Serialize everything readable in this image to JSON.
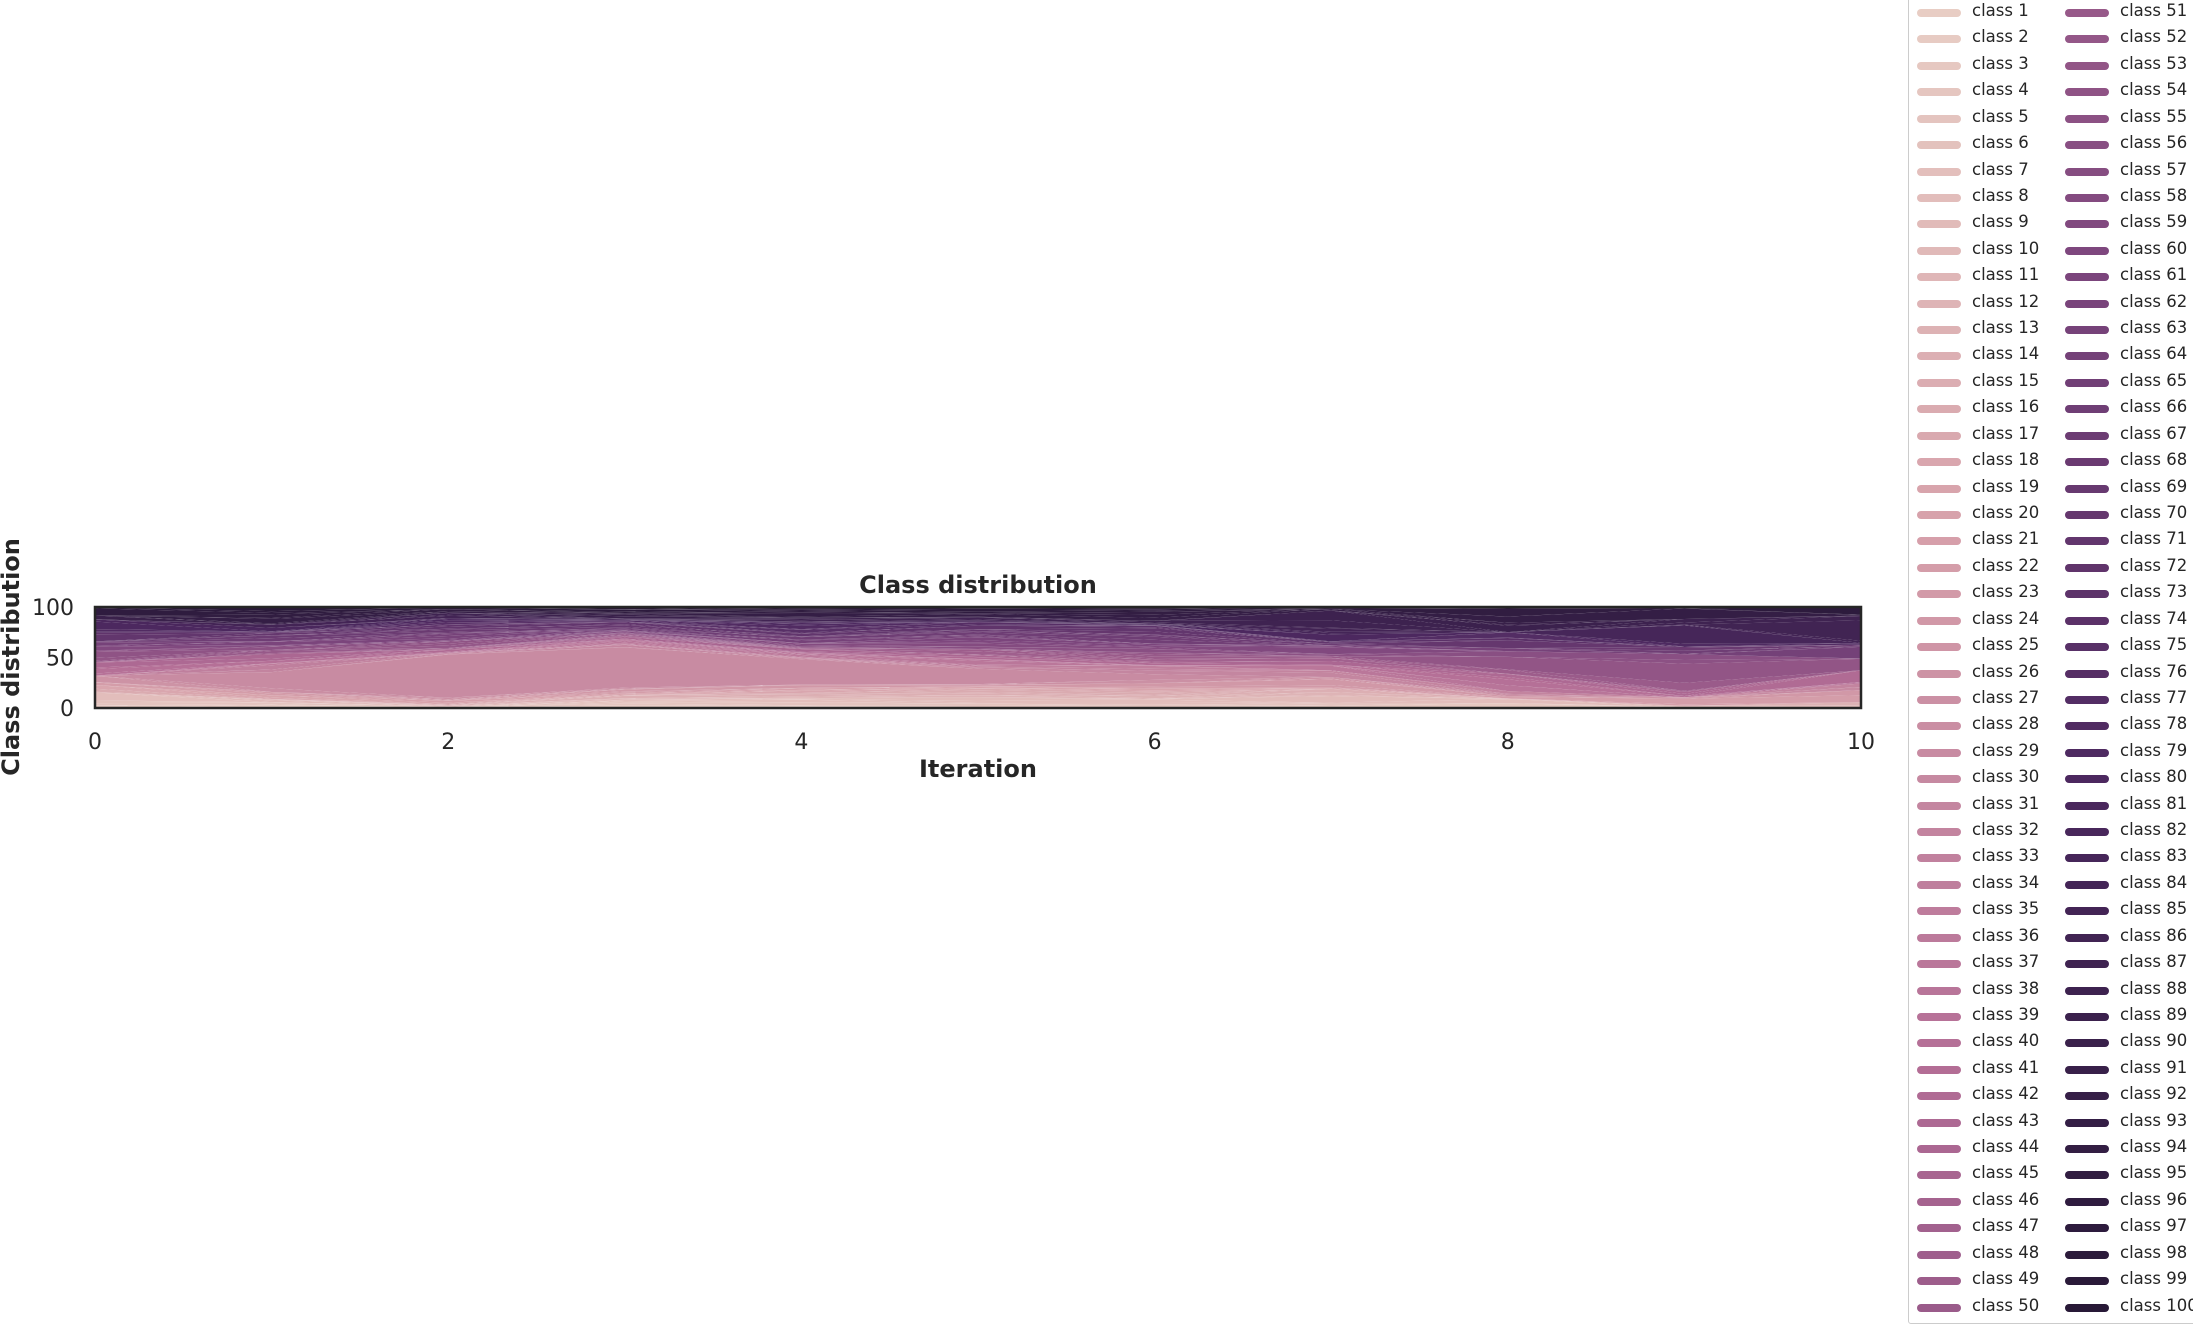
{
  "chart_data": {
    "type": "area",
    "title": "Class distribution",
    "xlabel": "Iteration",
    "ylabel": "Class distribution",
    "xlim": [
      0,
      10
    ],
    "ylim": [
      0,
      100
    ],
    "xticks": [
      "0",
      "2",
      "4",
      "6",
      "8",
      "10"
    ],
    "yticks": [
      "0",
      "50",
      "100"
    ],
    "grid": false,
    "legend_position": "outside-right",
    "legend_columns": 2,
    "palette": "cubehelix pink-to-dark-purple",
    "x": [
      0,
      1,
      2,
      3,
      4,
      5,
      6,
      7,
      8,
      9,
      10
    ],
    "highlighted_series": {
      "name": "class 29",
      "values": [
        0,
        5,
        25,
        25,
        12,
        6,
        2,
        0,
        0,
        0,
        0
      ]
    },
    "series_names": [
      "class 1",
      "class 2",
      "class 3",
      "class 4",
      "class 5",
      "class 6",
      "class 7",
      "class 8",
      "class 9",
      "class 10",
      "class 11",
      "class 12",
      "class 13",
      "class 14",
      "class 15",
      "class 16",
      "class 17",
      "class 18",
      "class 19",
      "class 20",
      "class 21",
      "class 22",
      "class 23",
      "class 24",
      "class 25",
      "class 26",
      "class 27",
      "class 28",
      "class 29",
      "class 30",
      "class 31",
      "class 32",
      "class 33",
      "class 34",
      "class 35",
      "class 36",
      "class 37",
      "class 38",
      "class 39",
      "class 40",
      "class 41",
      "class 42",
      "class 43",
      "class 44",
      "class 45",
      "class 46",
      "class 47",
      "class 48",
      "class 49",
      "class 50",
      "class 51",
      "class 52",
      "class 53",
      "class 54",
      "class 55",
      "class 56",
      "class 57",
      "class 58",
      "class 59",
      "class 60",
      "class 61",
      "class 62",
      "class 63",
      "class 64",
      "class 65",
      "class 66",
      "class 67",
      "class 68",
      "class 69",
      "class 70",
      "class 71",
      "class 72",
      "class 73",
      "class 74",
      "class 75",
      "class 76",
      "class 77",
      "class 78",
      "class 79",
      "class 80",
      "class 81",
      "class 82",
      "class 83",
      "class 84",
      "class 85",
      "class 86",
      "class 87",
      "class 88",
      "class 89",
      "class 90",
      "class 91",
      "class 92",
      "class 93",
      "class 94",
      "class 95",
      "class 96",
      "class 97",
      "class 98",
      "class 99",
      "class 100"
    ]
  }
}
